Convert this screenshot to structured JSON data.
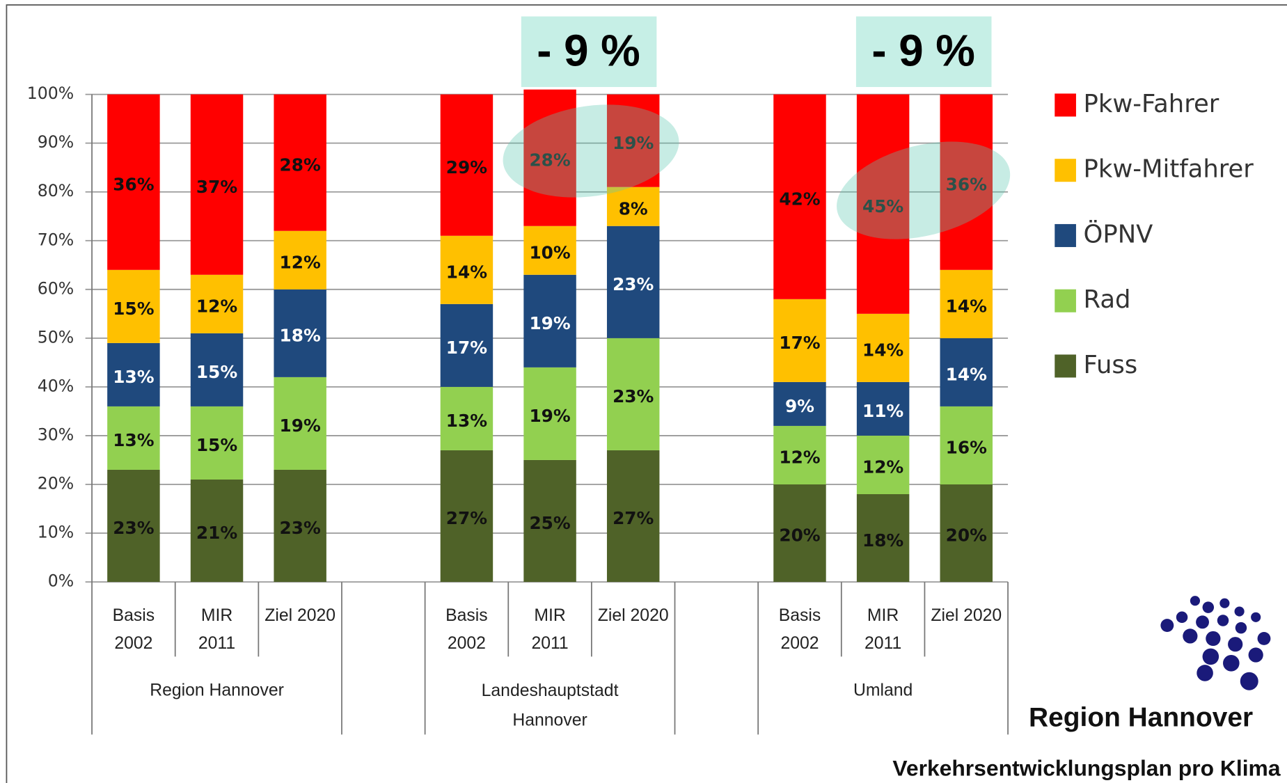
{
  "chart_data": {
    "type": "bar",
    "stacked": true,
    "groups": [
      "Region Hannover",
      "Landeshauptstadt Hannover",
      "Umland"
    ],
    "categories": [
      [
        "Basis",
        "2002"
      ],
      [
        "MIR",
        "2011"
      ],
      [
        "Ziel 2020"
      ],
      [
        "Basis",
        "2002"
      ],
      [
        "MIR",
        "2011"
      ],
      [
        "Ziel 2020"
      ],
      [
        "Basis",
        "2002"
      ],
      [
        "MIR",
        "2011"
      ],
      [
        "Ziel 2020"
      ]
    ],
    "series": [
      {
        "name": "Fuss",
        "color": "#4f6228",
        "values": [
          23,
          21,
          23,
          27,
          25,
          27,
          20,
          18,
          20
        ],
        "value_labels": [
          "23%",
          "21%",
          "23%",
          "27%",
          "25%",
          "27%",
          "20%",
          "18%",
          "20%"
        ]
      },
      {
        "name": "Rad",
        "color": "#92d050",
        "values": [
          13,
          15,
          19,
          13,
          19,
          23,
          12,
          12,
          16
        ],
        "value_labels": [
          "13%",
          "15%",
          "19%",
          "13%",
          "19%",
          "23%",
          "12%",
          "12%",
          "16%"
        ]
      },
      {
        "name": "ÖPNV",
        "color": "#1f497d",
        "values": [
          13,
          15,
          18,
          17,
          19,
          23,
          9,
          11,
          14
        ],
        "value_labels": [
          "13%",
          "15%",
          "18%",
          "17%",
          "19%",
          "23%",
          "9%",
          "11%",
          "14%"
        ]
      },
      {
        "name": "Pkw-Mitfahrer",
        "color": "#ffc000",
        "values": [
          15,
          12,
          12,
          14,
          10,
          8,
          17,
          14,
          14
        ],
        "value_labels": [
          "15%",
          "12%",
          "12%",
          "14%",
          "10%",
          "8%",
          "17%",
          "14%",
          "14%"
        ]
      },
      {
        "name": "Pkw-Fahrer",
        "color": "#ff0000",
        "values": [
          36,
          37,
          28,
          29,
          28,
          19,
          42,
          45,
          36
        ],
        "value_labels": [
          "36%",
          "37%",
          "28%",
          "29%",
          "28%",
          "19%",
          "42%",
          "45%",
          "36%"
        ]
      }
    ],
    "ylim": [
      0,
      100
    ],
    "yticks": [
      {
        "value": 0,
        "label": "0%"
      },
      {
        "value": 10,
        "label": "10%"
      },
      {
        "value": 20,
        "label": "20%"
      },
      {
        "value": 30,
        "label": "30%"
      },
      {
        "value": 40,
        "label": "40%"
      },
      {
        "value": 50,
        "label": "50%"
      },
      {
        "value": 60,
        "label": "60%"
      },
      {
        "value": 70,
        "label": "70%"
      },
      {
        "value": 80,
        "label": "80%"
      },
      {
        "value": 90,
        "label": "90%"
      },
      {
        "value": 100,
        "label": "100%"
      }
    ],
    "grid": true,
    "annotations": [
      "- 9 %",
      "- 9 %"
    ],
    "logo": "Region Hannover",
    "footer": "Verkehrsentwicklungsplan pro Klima"
  }
}
